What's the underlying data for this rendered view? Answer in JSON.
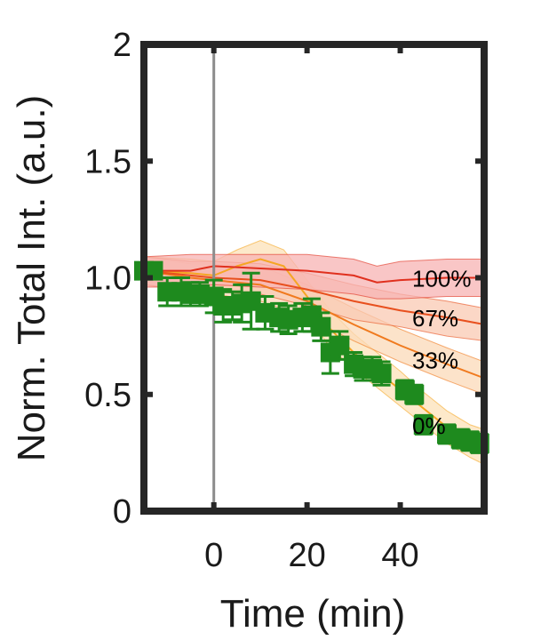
{
  "chart_data": {
    "type": "line",
    "xlabel": "Time (min)",
    "ylabel": "Norm. Total Int. (a.u.)",
    "xlim": [
      -15,
      58
    ],
    "ylim": [
      0,
      2
    ],
    "x_ticks": [
      0,
      20,
      40
    ],
    "x_tick_labels": [
      "0",
      "20",
      "40"
    ],
    "y_ticks": [
      0,
      0.5,
      1.0,
      1.5,
      2
    ],
    "y_tick_labels": [
      "0",
      "0.5",
      "1.0",
      "1.5",
      "2"
    ],
    "vertical_line_x": 0,
    "grid": false,
    "model_series": [
      {
        "name": "100%",
        "color": "#e0301e",
        "fill": "#f7b3b3",
        "x": [
          -15,
          -5,
          0,
          10,
          20,
          30,
          35,
          40,
          50,
          58
        ],
        "y": [
          1.03,
          1.03,
          1.05,
          1.04,
          1.03,
          1.01,
          0.98,
          0.99,
          1.0,
          1.0
        ],
        "lower": [
          0.96,
          0.96,
          0.97,
          0.96,
          0.95,
          0.93,
          0.91,
          0.91,
          0.92,
          0.92
        ],
        "upper": [
          1.09,
          1.1,
          1.1,
          1.1,
          1.1,
          1.08,
          1.05,
          1.07,
          1.08,
          1.08
        ]
      },
      {
        "name": "67%",
        "color": "#e8501e",
        "fill": "#f9c9b3",
        "x": [
          -15,
          -5,
          0,
          10,
          20,
          30,
          40,
          50,
          58
        ],
        "y": [
          1.03,
          1.01,
          1.0,
          0.99,
          0.95,
          0.9,
          0.86,
          0.83,
          0.8
        ],
        "lower": [
          0.97,
          0.95,
          0.94,
          0.93,
          0.88,
          0.82,
          0.79,
          0.75,
          0.73
        ],
        "upper": [
          1.09,
          1.07,
          1.07,
          1.06,
          1.02,
          0.97,
          0.93,
          0.9,
          0.87
        ]
      },
      {
        "name": "33%",
        "color": "#f07a1e",
        "fill": "#fbd9b8",
        "x": [
          -15,
          -5,
          0,
          10,
          20,
          30,
          40,
          50,
          58
        ],
        "y": [
          1.03,
          1.0,
          0.99,
          0.97,
          0.9,
          0.8,
          0.71,
          0.63,
          0.57
        ],
        "lower": [
          0.97,
          0.94,
          0.93,
          0.9,
          0.83,
          0.73,
          0.64,
          0.56,
          0.5
        ],
        "upper": [
          1.09,
          1.06,
          1.06,
          1.05,
          0.97,
          0.87,
          0.78,
          0.7,
          0.64
        ]
      },
      {
        "name": "0%",
        "color": "#f5a623",
        "fill": "#fce2b8",
        "x": [
          -15,
          -5,
          0,
          5,
          10,
          15,
          20,
          25,
          30,
          35,
          40,
          45,
          50,
          55,
          58
        ],
        "y": [
          1.03,
          1.02,
          1.01,
          1.05,
          1.08,
          1.05,
          0.92,
          0.78,
          0.68,
          0.6,
          0.52,
          0.44,
          0.36,
          0.3,
          0.27
        ],
        "lower": [
          0.97,
          0.96,
          0.95,
          0.98,
          1.01,
          0.96,
          0.84,
          0.7,
          0.61,
          0.53,
          0.45,
          0.37,
          0.29,
          0.23,
          0.2
        ],
        "upper": [
          1.09,
          1.08,
          1.07,
          1.12,
          1.16,
          1.12,
          0.99,
          0.86,
          0.76,
          0.68,
          0.6,
          0.51,
          0.43,
          0.37,
          0.35
        ]
      }
    ],
    "measured": {
      "color": "#1e8a1e",
      "marker": "square",
      "x": [
        -15,
        -13,
        -10,
        -7,
        -5,
        -3,
        0,
        2,
        4,
        6,
        8,
        11,
        14,
        16,
        19,
        21,
        23,
        25,
        27,
        30,
        32,
        34,
        36,
        41,
        43,
        45,
        50,
        53,
        55,
        57
      ],
      "y": [
        1.03,
        1.03,
        0.94,
        0.94,
        0.93,
        0.93,
        0.92,
        0.88,
        0.88,
        0.89,
        0.9,
        0.85,
        0.83,
        0.82,
        0.83,
        0.84,
        0.79,
        0.68,
        0.71,
        0.63,
        0.61,
        0.61,
        0.59,
        0.52,
        0.5,
        0.37,
        0.33,
        0.31,
        0.3,
        0.29
      ],
      "err": [
        0.03,
        0.03,
        0.06,
        0.06,
        0.05,
        0.05,
        0.07,
        0.07,
        0.06,
        0.08,
        0.12,
        0.07,
        0.06,
        0.06,
        0.06,
        0.07,
        0.06,
        0.09,
        0.06,
        0.05,
        0.05,
        0.05,
        0.05,
        0.04,
        0.04,
        0.04,
        0.04,
        0.04,
        0.04,
        0.04
      ]
    }
  }
}
